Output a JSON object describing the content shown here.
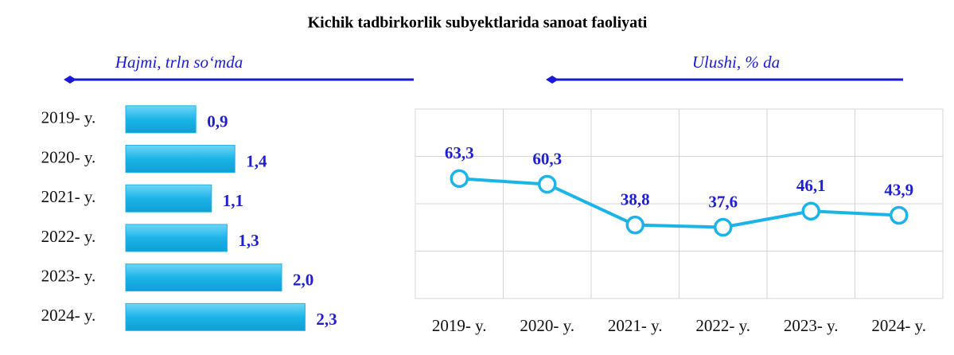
{
  "title": "Kichik tadbirkorlik subyektlarida sanoat faoliyati",
  "chart_data": [
    {
      "type": "hbar",
      "subtitle": "Hajmi, trln so‘mda",
      "categories": [
        "2019- y.",
        "2020- y.",
        "2021- y.",
        "2022- y.",
        "2023- y.",
        "2024- y."
      ],
      "values": [
        0.9,
        1.4,
        1.1,
        1.3,
        2.0,
        2.3
      ],
      "value_labels": [
        "0,9",
        "1,4",
        "1,1",
        "1,3",
        "2,0",
        "2,3"
      ],
      "color": "#1cb4e8",
      "label_color": "#1f1fcf"
    },
    {
      "type": "line",
      "subtitle": "Ulushi, % da",
      "categories": [
        "2019- y.",
        "2020- y.",
        "2021- y.",
        "2022- y.",
        "2023- y.",
        "2024- y."
      ],
      "values": [
        63.3,
        60.3,
        38.8,
        37.6,
        46.1,
        43.9
      ],
      "value_labels": [
        "63,3",
        "60,3",
        "38,8",
        "37,6",
        "46,1",
        "43,9"
      ],
      "ylim": [
        0,
        100
      ],
      "yticks": [
        0,
        25,
        50,
        75,
        100
      ],
      "grid": true,
      "color": "#1cb4e8",
      "label_color": "#1f1fcf"
    }
  ]
}
